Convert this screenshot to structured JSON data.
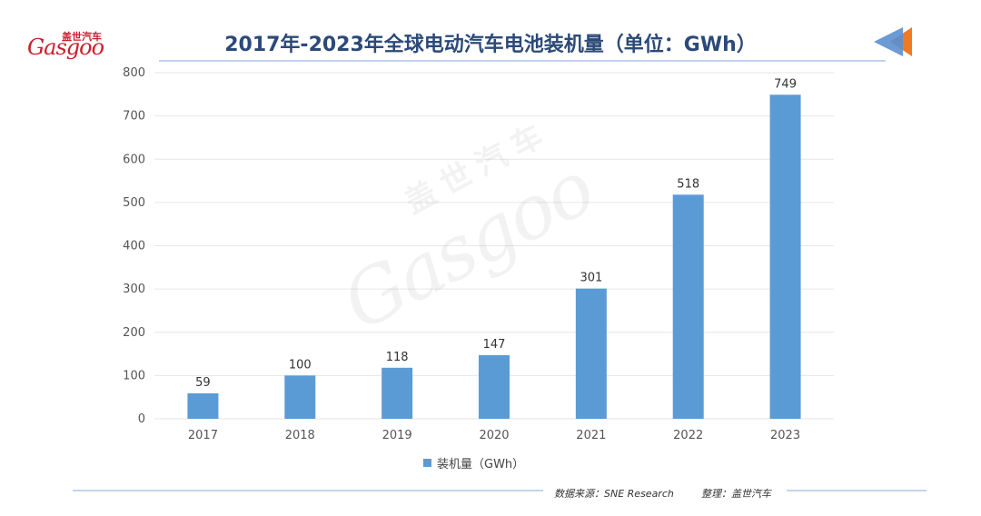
{
  "logo": {
    "cn": "盖世汽车",
    "en": "Gasgoo"
  },
  "watermark": {
    "cn": "盖世汽车",
    "en": "Gasgoo"
  },
  "footer": {
    "source": "数据来源：SNE Research",
    "org": "整理：盖世汽车"
  },
  "colors": {
    "bar": "#5b9bd5",
    "title": "#2c4a78",
    "accent_orange": "#f07a24",
    "accent_blue": "#5b8fd0",
    "rule": "#9dbbe3"
  },
  "chart_data": {
    "type": "bar",
    "title": "2017年-2023年全球电动汽车电池装机量（单位：GWh）",
    "categories": [
      "2017",
      "2018",
      "2019",
      "2020",
      "2021",
      "2022",
      "2023"
    ],
    "series": [
      {
        "name": "装机量（GWh）",
        "values": [
          59,
          100,
          118,
          147,
          301,
          518,
          749
        ]
      }
    ],
    "data_labels": [
      "59",
      "100",
      "118",
      "147",
      "301",
      "518",
      "749"
    ],
    "yticks": [
      "0",
      "100",
      "200",
      "300",
      "400",
      "500",
      "600",
      "700",
      "800"
    ],
    "ylim": [
      0,
      800
    ],
    "grid": true,
    "legend": "bottom"
  }
}
